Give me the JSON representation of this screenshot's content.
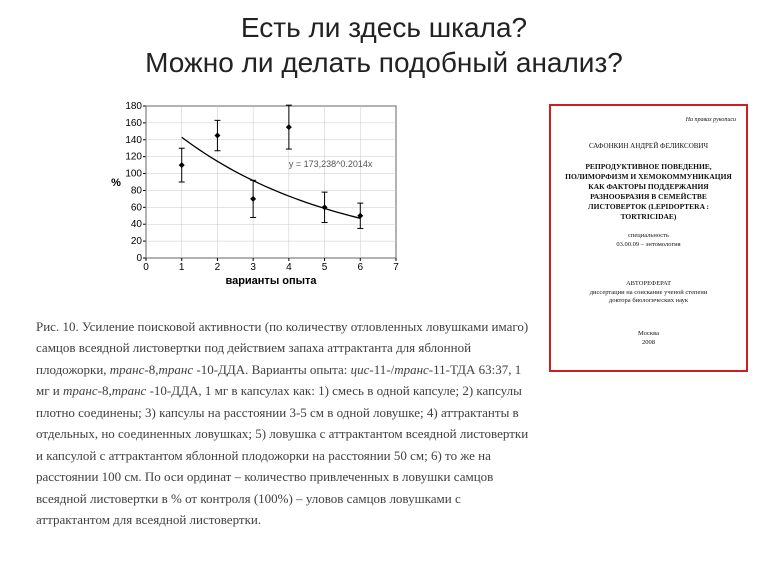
{
  "title_line1": "Есть ли здесь шкала?",
  "title_line2": "Можно ли делать подобный анализ?",
  "chart": {
    "type": "scatter+line",
    "xlabel": "варианты опыта",
    "ylabel": "%",
    "equation": "y = 173,238^0.2014x",
    "xlim": [
      0,
      7
    ],
    "xtick_step": 1,
    "ylim": [
      0,
      180
    ],
    "ytick_step": 20,
    "xticks": [
      0,
      1,
      2,
      3,
      4,
      5,
      6,
      7
    ],
    "yticks": [
      0,
      20,
      40,
      60,
      80,
      100,
      120,
      140,
      160,
      180
    ],
    "line": [
      [
        1,
        143
      ],
      [
        6,
        47
      ]
    ],
    "points": [
      {
        "x": 1,
        "y": 110,
        "err": 20
      },
      {
        "x": 2,
        "y": 145,
        "err": 18
      },
      {
        "x": 3,
        "y": 70,
        "err": 22
      },
      {
        "x": 4,
        "y": 155,
        "err": 26
      },
      {
        "x": 5,
        "y": 60,
        "err": 18
      },
      {
        "x": 6,
        "y": 50,
        "err": 15
      }
    ],
    "axis_color": "#000000",
    "grid_color": "#c8c8c8",
    "marker_color": "#000000",
    "line_color": "#000000",
    "bg": "#ffffff",
    "tick_fontsize": 10,
    "label_fontsize": 11
  },
  "caption": {
    "lead": "Рис. 10. Усиление поисковой активности (по количеству отловленных ловушками имаго) самцов всеядной листовертки под действием запаха аттрактанта для яблонной плодожорки, ",
    "it1": "транс",
    "t1": "-8,",
    "it2": "транс",
    "t2": " -10-ДДА. Варианты опыта: ",
    "it3": "цис",
    "t3": "-11-/",
    "it4": "транс",
    "t4": "-11-ТДА 63:37, 1 мг и ",
    "it5": "транс",
    "t5": "-8,",
    "it6": "транс",
    "t6": " -10-ДДА, 1 мг в капсулах как: 1) смесь в одной капсуле; 2) капсулы плотно соединены; 3) капсулы на расстоянии 3-5 см в одной ловушке; 4) аттрактанты в отдельных, но соединенных ловушках; 5) ловушка с аттрактантом всеядной листовертки и капсулой с аттрактантом яблонной плодожорки на расстоянии 50 см; 6) то же на расстоянии 100 см. По оси ординат – количество привлеченных в ловушки самцов всеядной листовертки в % от контроля (100%) – уловов самцов ловушками с аттрактантом для всеядной листовертки."
  },
  "doc": {
    "rights": "На правах рукописи",
    "author": "САФОНКИН АНДРЕЙ ФЕЛИКСОВИЧ",
    "main": "РЕПРОДУКТИВНОЕ ПОВЕДЕНИЕ, ПОЛИМОРФИЗМ И ХЕМОКОММУНИКАЦИЯ КАК ФАКТОРЫ ПОДДЕРЖАНИЯ РАЗНООБРАЗИЯ В СЕМЕЙСТВЕ ЛИСТОВЕРТОК (LEPIDOPTERA : TORTRICIDAE)",
    "spec_lbl": "специальность",
    "spec_val": "03.00.09 – энтомология",
    "abs1": "АВТОРЕФЕРАТ",
    "abs2": "диссертации на соискание ученой степени",
    "abs3": "доктора биологических наук",
    "city": "Москва",
    "year": "2008",
    "border_color": "#cc1f1f"
  }
}
